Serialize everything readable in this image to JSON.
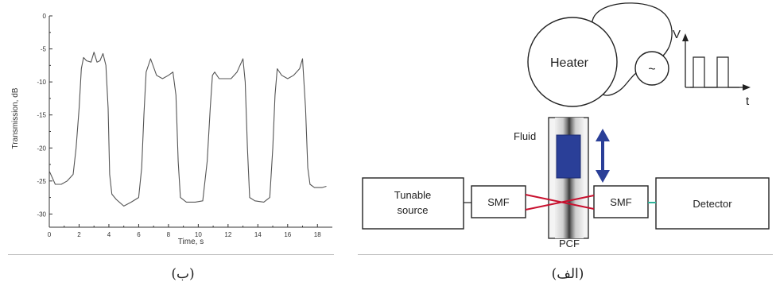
{
  "chart_data": {
    "type": "line",
    "xlabel": "Time, s",
    "ylabel": "Transmission, dB",
    "xlim": [
      0,
      19
    ],
    "ylim": [
      -32,
      0
    ],
    "xticks": [
      0,
      2,
      4,
      6,
      8,
      10,
      12,
      14,
      16,
      18
    ],
    "yticks": [
      0,
      -5,
      -10,
      -15,
      -20,
      -25,
      -30
    ],
    "grid": false,
    "series": [
      {
        "x": [
          0,
          0.4,
          0.8,
          1.2,
          1.6,
          1.8,
          2.0,
          2.15,
          2.3,
          2.5,
          2.8,
          3.0,
          3.2,
          3.4,
          3.6,
          3.8,
          3.95,
          4.05,
          4.2,
          4.5,
          5.0,
          5.5,
          6.0,
          6.2,
          6.35,
          6.5,
          6.8,
          7.2,
          7.6,
          8.0,
          8.3,
          8.5,
          8.65,
          8.8,
          9.2,
          9.8,
          10.3,
          10.6,
          10.8,
          10.95,
          11.1,
          11.4,
          11.8,
          12.2,
          12.6,
          13.0,
          13.15,
          13.3,
          13.45,
          13.8,
          14.4,
          14.8,
          15.0,
          15.15,
          15.3,
          15.6,
          16.0,
          16.4,
          16.8,
          17.0,
          17.2,
          17.35,
          17.5,
          17.8,
          18.3,
          18.6
        ],
        "y": [
          -23.5,
          -25.5,
          -25.5,
          -25.0,
          -24.0,
          -20.0,
          -14.0,
          -8.0,
          -6.3,
          -6.8,
          -7.0,
          -5.5,
          -7.0,
          -6.8,
          -5.7,
          -7.5,
          -14.0,
          -24.0,
          -27.0,
          -27.8,
          -28.8,
          -28.2,
          -27.5,
          -23.0,
          -15.0,
          -8.5,
          -6.5,
          -9.0,
          -9.5,
          -9.0,
          -8.5,
          -12.0,
          -22.0,
          -27.5,
          -28.2,
          -28.2,
          -28.0,
          -22.0,
          -14.0,
          -9.0,
          -8.5,
          -9.5,
          -9.5,
          -9.5,
          -8.5,
          -6.5,
          -10.0,
          -20.0,
          -27.5,
          -28.0,
          -28.2,
          -27.5,
          -20.0,
          -12.0,
          -8.0,
          -9.0,
          -9.5,
          -9.0,
          -8.0,
          -6.5,
          -14.0,
          -23.0,
          -25.5,
          -26.0,
          -26.0,
          -25.8
        ]
      }
    ]
  },
  "diagram": {
    "heater": "Heater",
    "ac_source_symbol": "~",
    "pulse_axis_v": "V",
    "pulse_axis_t": "t",
    "fluid": "Fluid",
    "tunable_source_line1": "Tunable",
    "tunable_source_line2": "source",
    "smf_left": "SMF",
    "smf_right": "SMF",
    "detector": "Detector",
    "pcf": "PCF"
  },
  "captions": {
    "left": "(ب)",
    "right": "(الف)"
  },
  "colors": {
    "fluid": "#2a3f98",
    "arrow": "#2a3f98",
    "fiber": "#c8102e",
    "detector_link": "#2fb39a",
    "trace": "#555555"
  }
}
